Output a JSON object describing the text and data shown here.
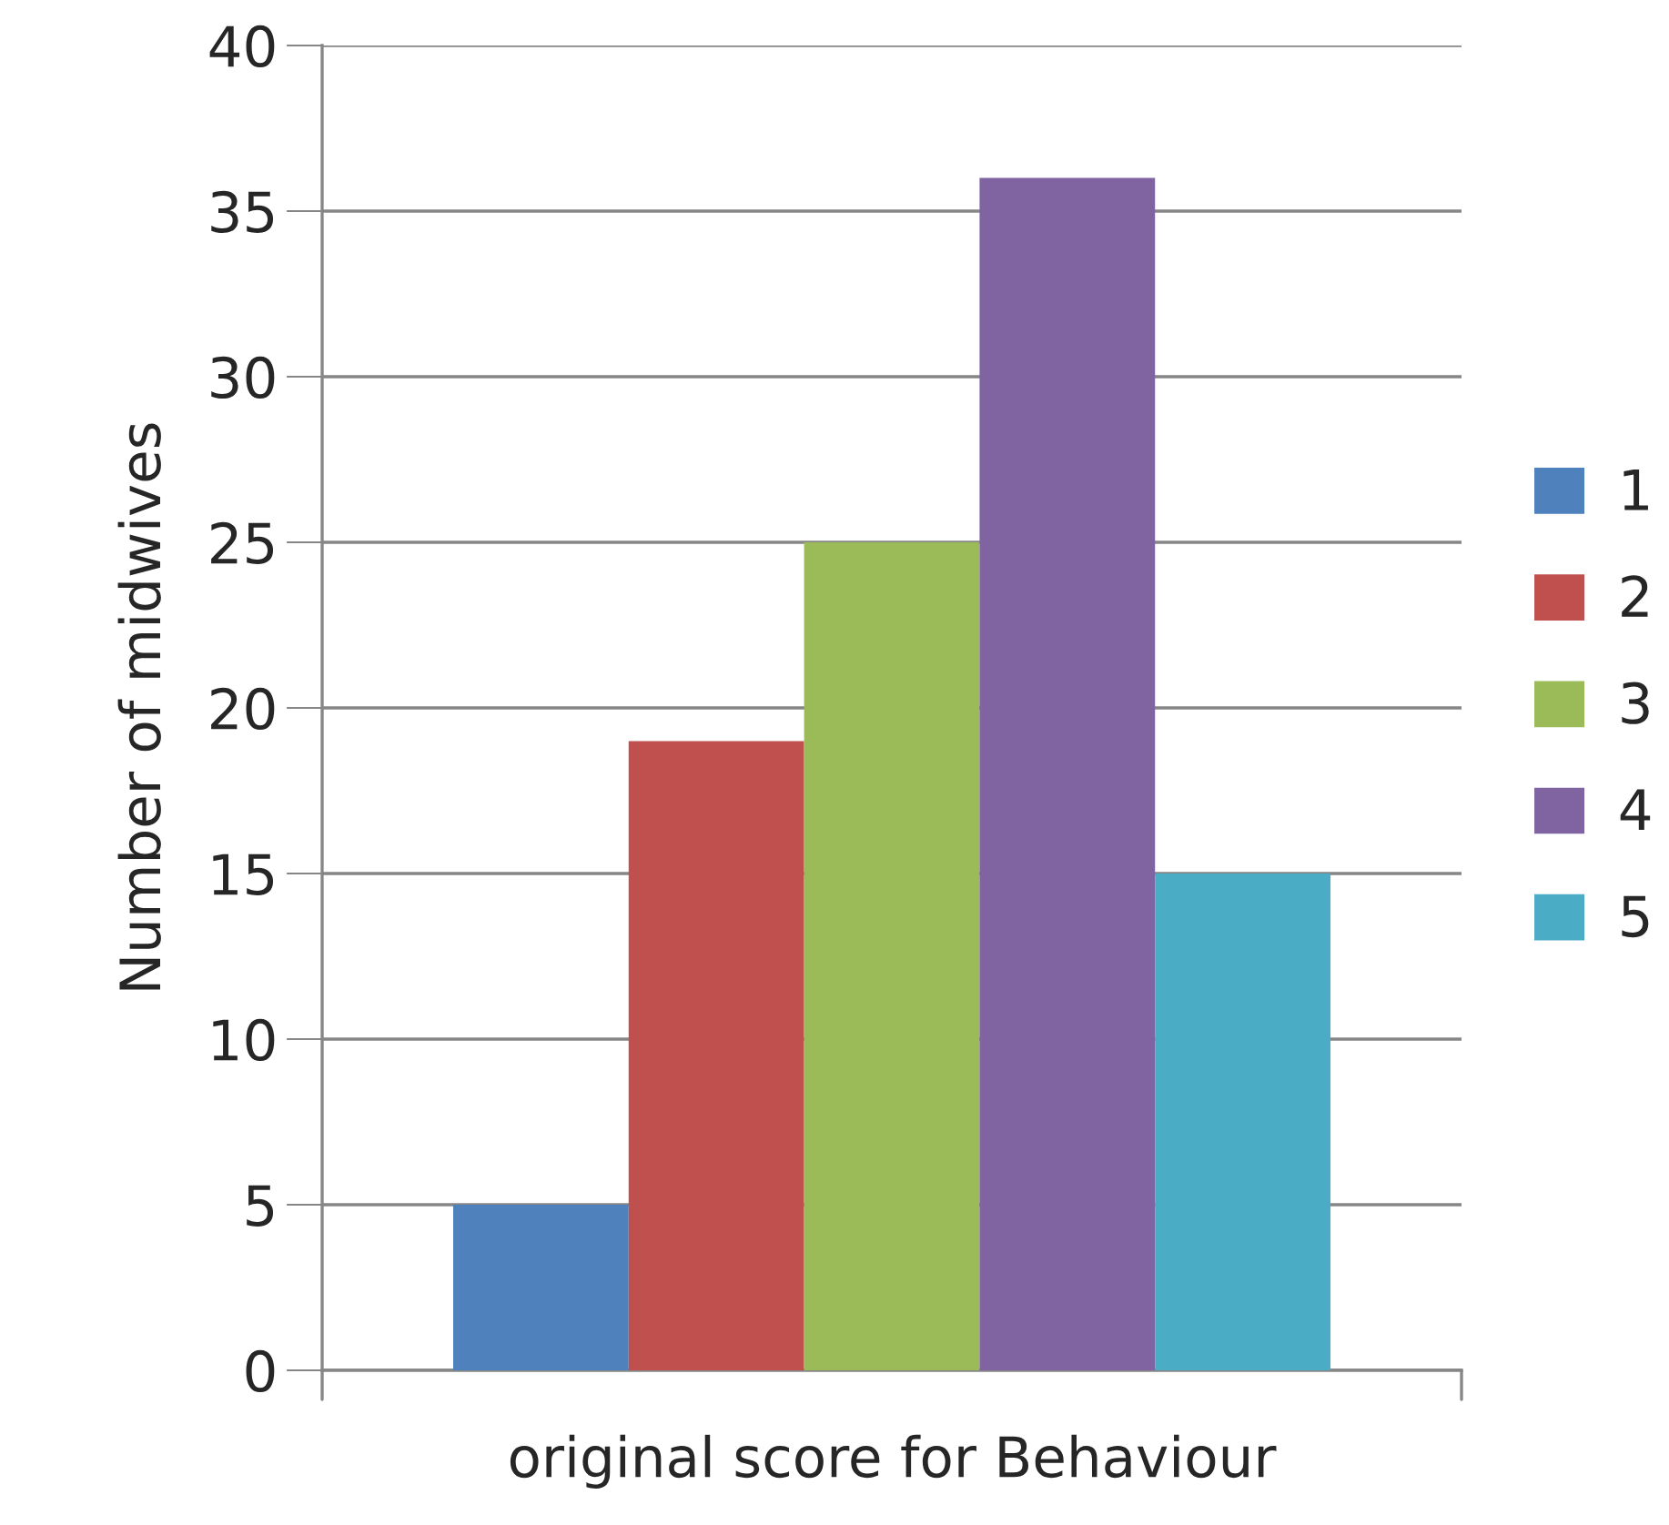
{
  "chart_data": {
    "type": "bar",
    "xlabel": "original score for Behaviour",
    "ylabel": "Number of midwives",
    "categories": [
      null
    ],
    "series": [
      {
        "name": "1",
        "color": "#4f81bd",
        "values": [
          5
        ]
      },
      {
        "name": "2",
        "color": "#c0504d",
        "values": [
          19
        ]
      },
      {
        "name": "3",
        "color": "#9bbb59",
        "values": [
          25
        ]
      },
      {
        "name": "4",
        "color": "#8064a2",
        "values": [
          36
        ]
      },
      {
        "name": "5",
        "color": "#4bacc6",
        "values": [
          15
        ]
      }
    ],
    "ylim": [
      0,
      40
    ],
    "yticks": [
      0,
      5,
      10,
      15,
      20,
      25,
      30,
      35,
      40
    ],
    "grid": "y",
    "legend": "right"
  }
}
